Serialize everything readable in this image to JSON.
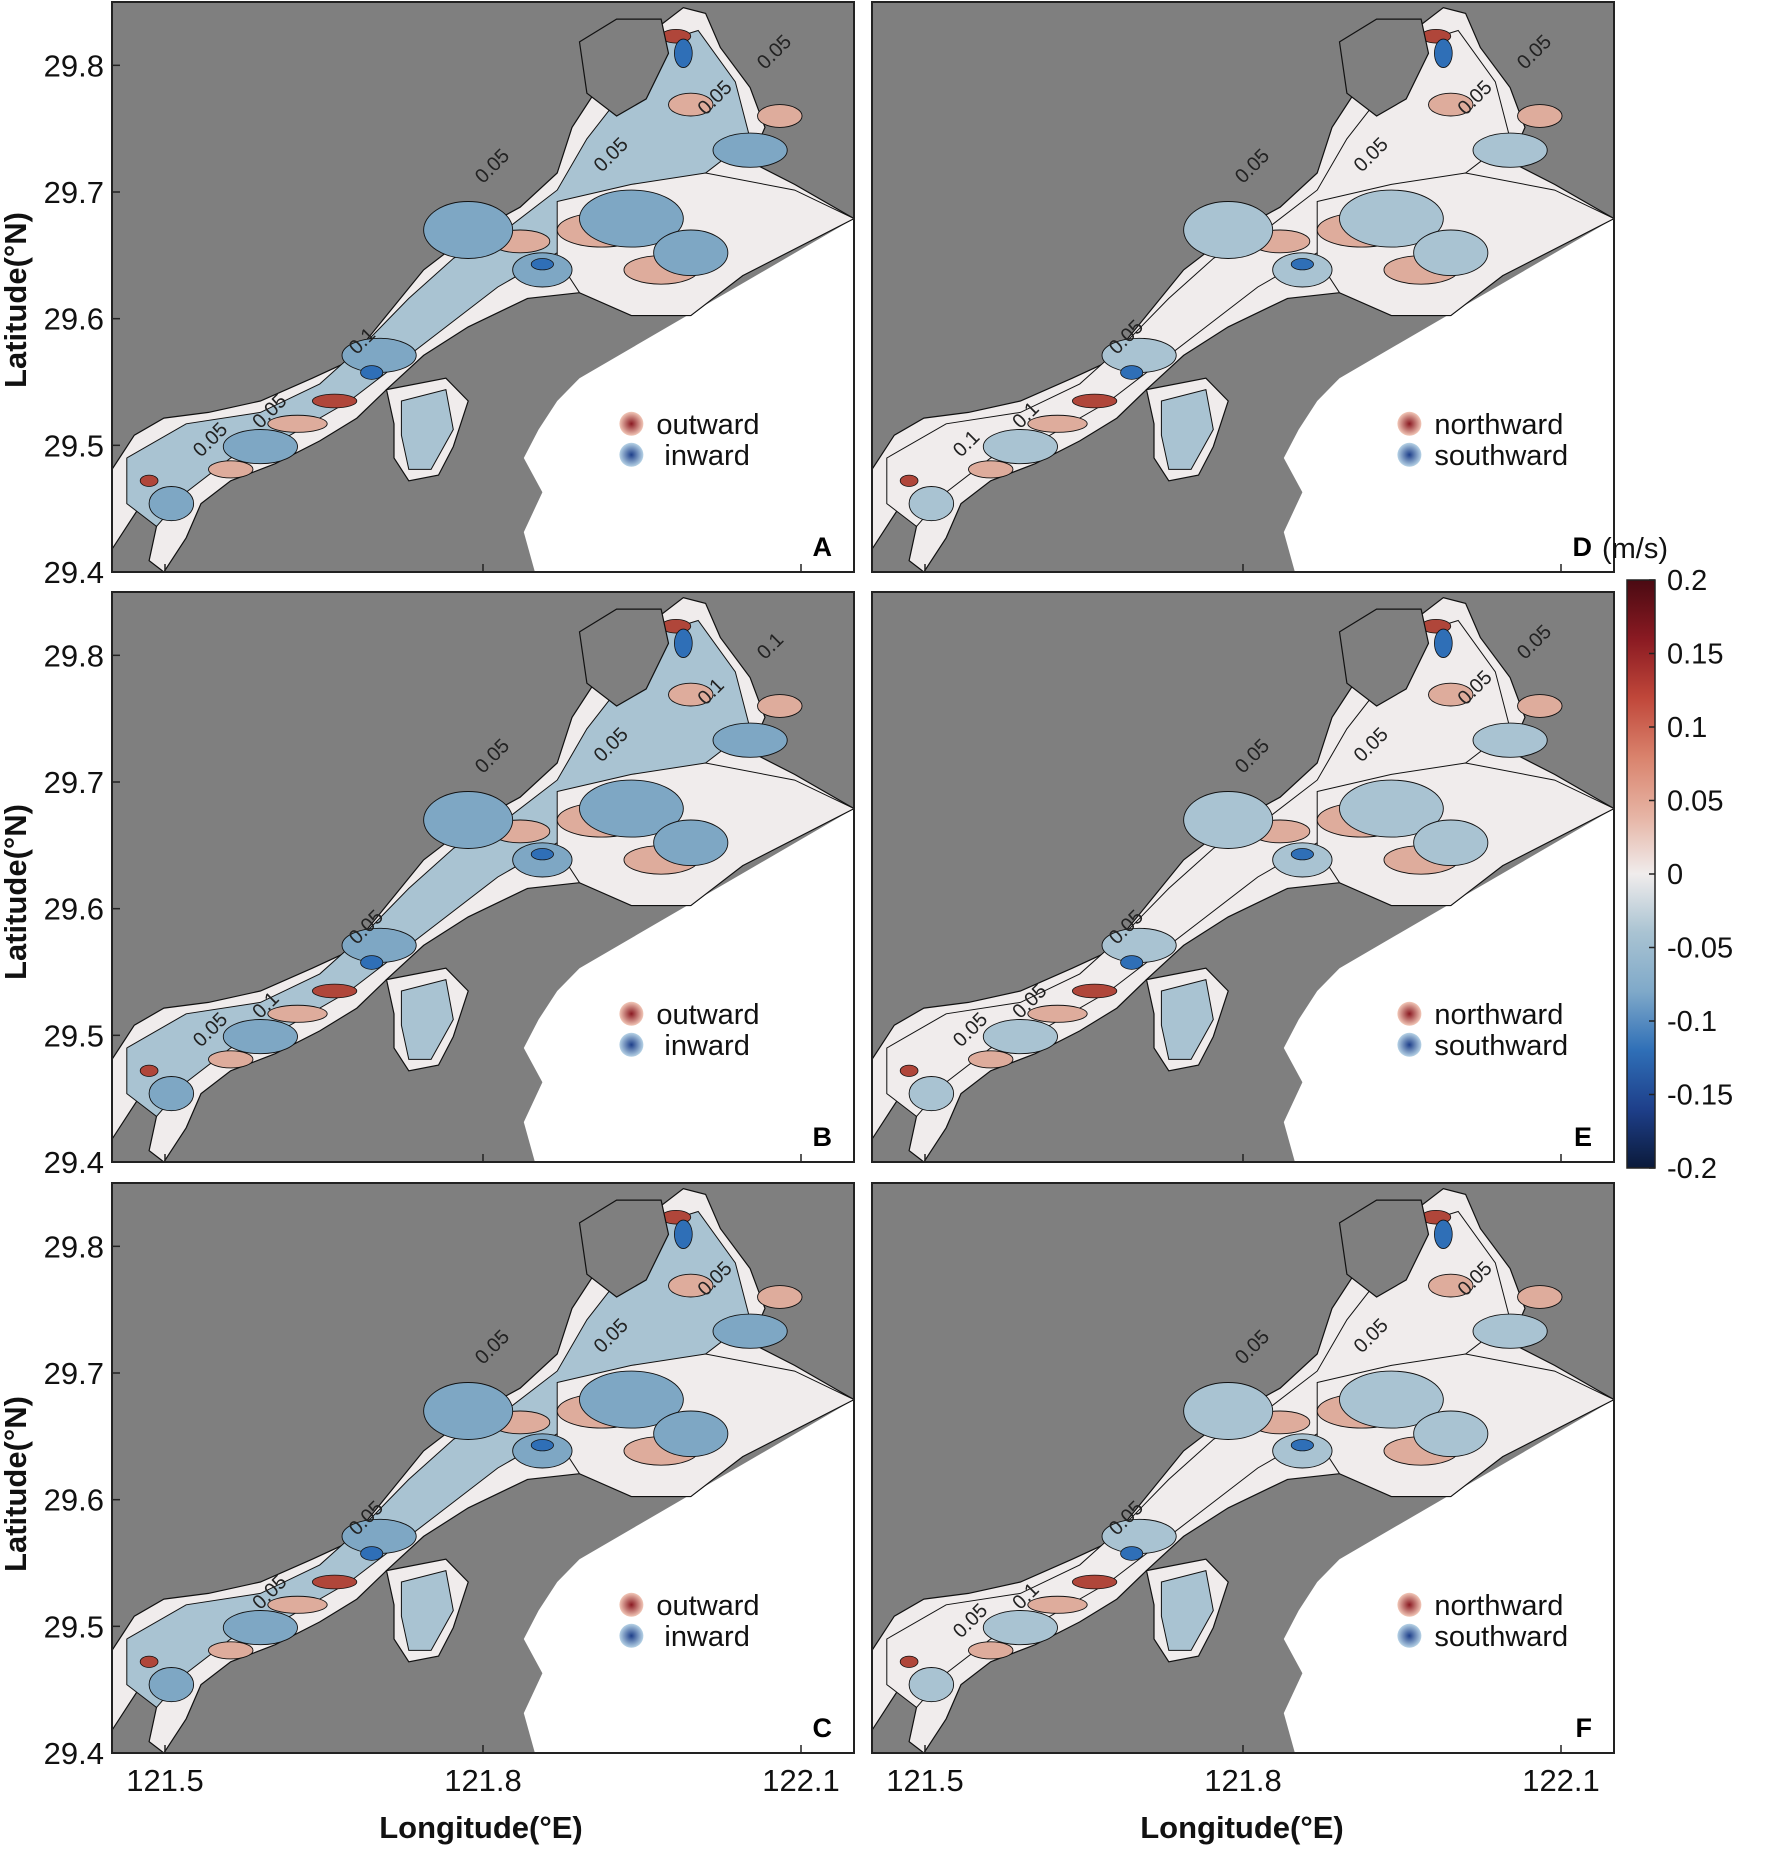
{
  "figure": {
    "xlabel": "Longitude(°E)",
    "ylabel": "Latitude(°N)",
    "x_ticks": [
      "121.5",
      "121.8",
      "122.1"
    ],
    "y_ticks": [
      "29.4",
      "29.5",
      "29.6",
      "29.7",
      "29.8"
    ],
    "x_range": [
      121.45,
      122.15
    ],
    "y_range": [
      29.4,
      29.85
    ]
  },
  "colorbar": {
    "unit": "(m/s)",
    "ticks": [
      "0.2",
      "0.15",
      "0.1",
      "0.05",
      "0",
      "-0.05",
      "-0.1",
      "-0.15",
      "-0.2"
    ],
    "range": [
      -0.2,
      0.2
    ],
    "colors": [
      "#0b1a3a",
      "#1e3f8a",
      "#2f6fb7",
      "#7fa9c9",
      "#a9c3d2",
      "#f0ecec",
      "#e6b3a3",
      "#d9826c",
      "#c0473a",
      "#8a1a22",
      "#4a0a12"
    ]
  },
  "colors": {
    "land": "#7f7f7f",
    "water_zero": "#f0ecec",
    "water_negative": "#a9c3d2",
    "water_positive": "#deac9c",
    "strong_negative": "#2f6fb7",
    "strong_positive": "#b0463a"
  },
  "panels": [
    {
      "letter": "A",
      "legend": {
        "positive": "outward",
        "negative": "inward"
      },
      "contour_labels": [
        "0.05",
        "0.05",
        "0.05",
        "0.1",
        "0.05",
        "0.05",
        "0.05"
      ]
    },
    {
      "letter": "B",
      "legend": {
        "positive": "outward",
        "negative": "inward"
      },
      "contour_labels": [
        "0.05",
        "0.05",
        "0.1",
        "0.05",
        "0.1",
        "0.05",
        "0.1"
      ]
    },
    {
      "letter": "C",
      "legend": {
        "positive": "outward",
        "negative": "inward"
      },
      "contour_labels": [
        "0.05",
        "0.05",
        "0.05",
        "0.05",
        "0.05"
      ]
    },
    {
      "letter": "D",
      "legend": {
        "positive": "northward",
        "negative": "southward"
      },
      "contour_labels": [
        "0.05",
        "0.05",
        "0.05",
        "0.05",
        "0.1",
        "0.1",
        "0.05"
      ]
    },
    {
      "letter": "E",
      "legend": {
        "positive": "northward",
        "negative": "southward"
      },
      "contour_labels": [
        "0.05",
        "0.05",
        "0.05",
        "0.05",
        "0.05",
        "0.05",
        "0.05"
      ]
    },
    {
      "letter": "F",
      "legend": {
        "positive": "northward",
        "negative": "southward"
      },
      "contour_labels": [
        "0.05",
        "0.05",
        "0.05",
        "0.05",
        "0.1",
        "0.05"
      ]
    }
  ]
}
